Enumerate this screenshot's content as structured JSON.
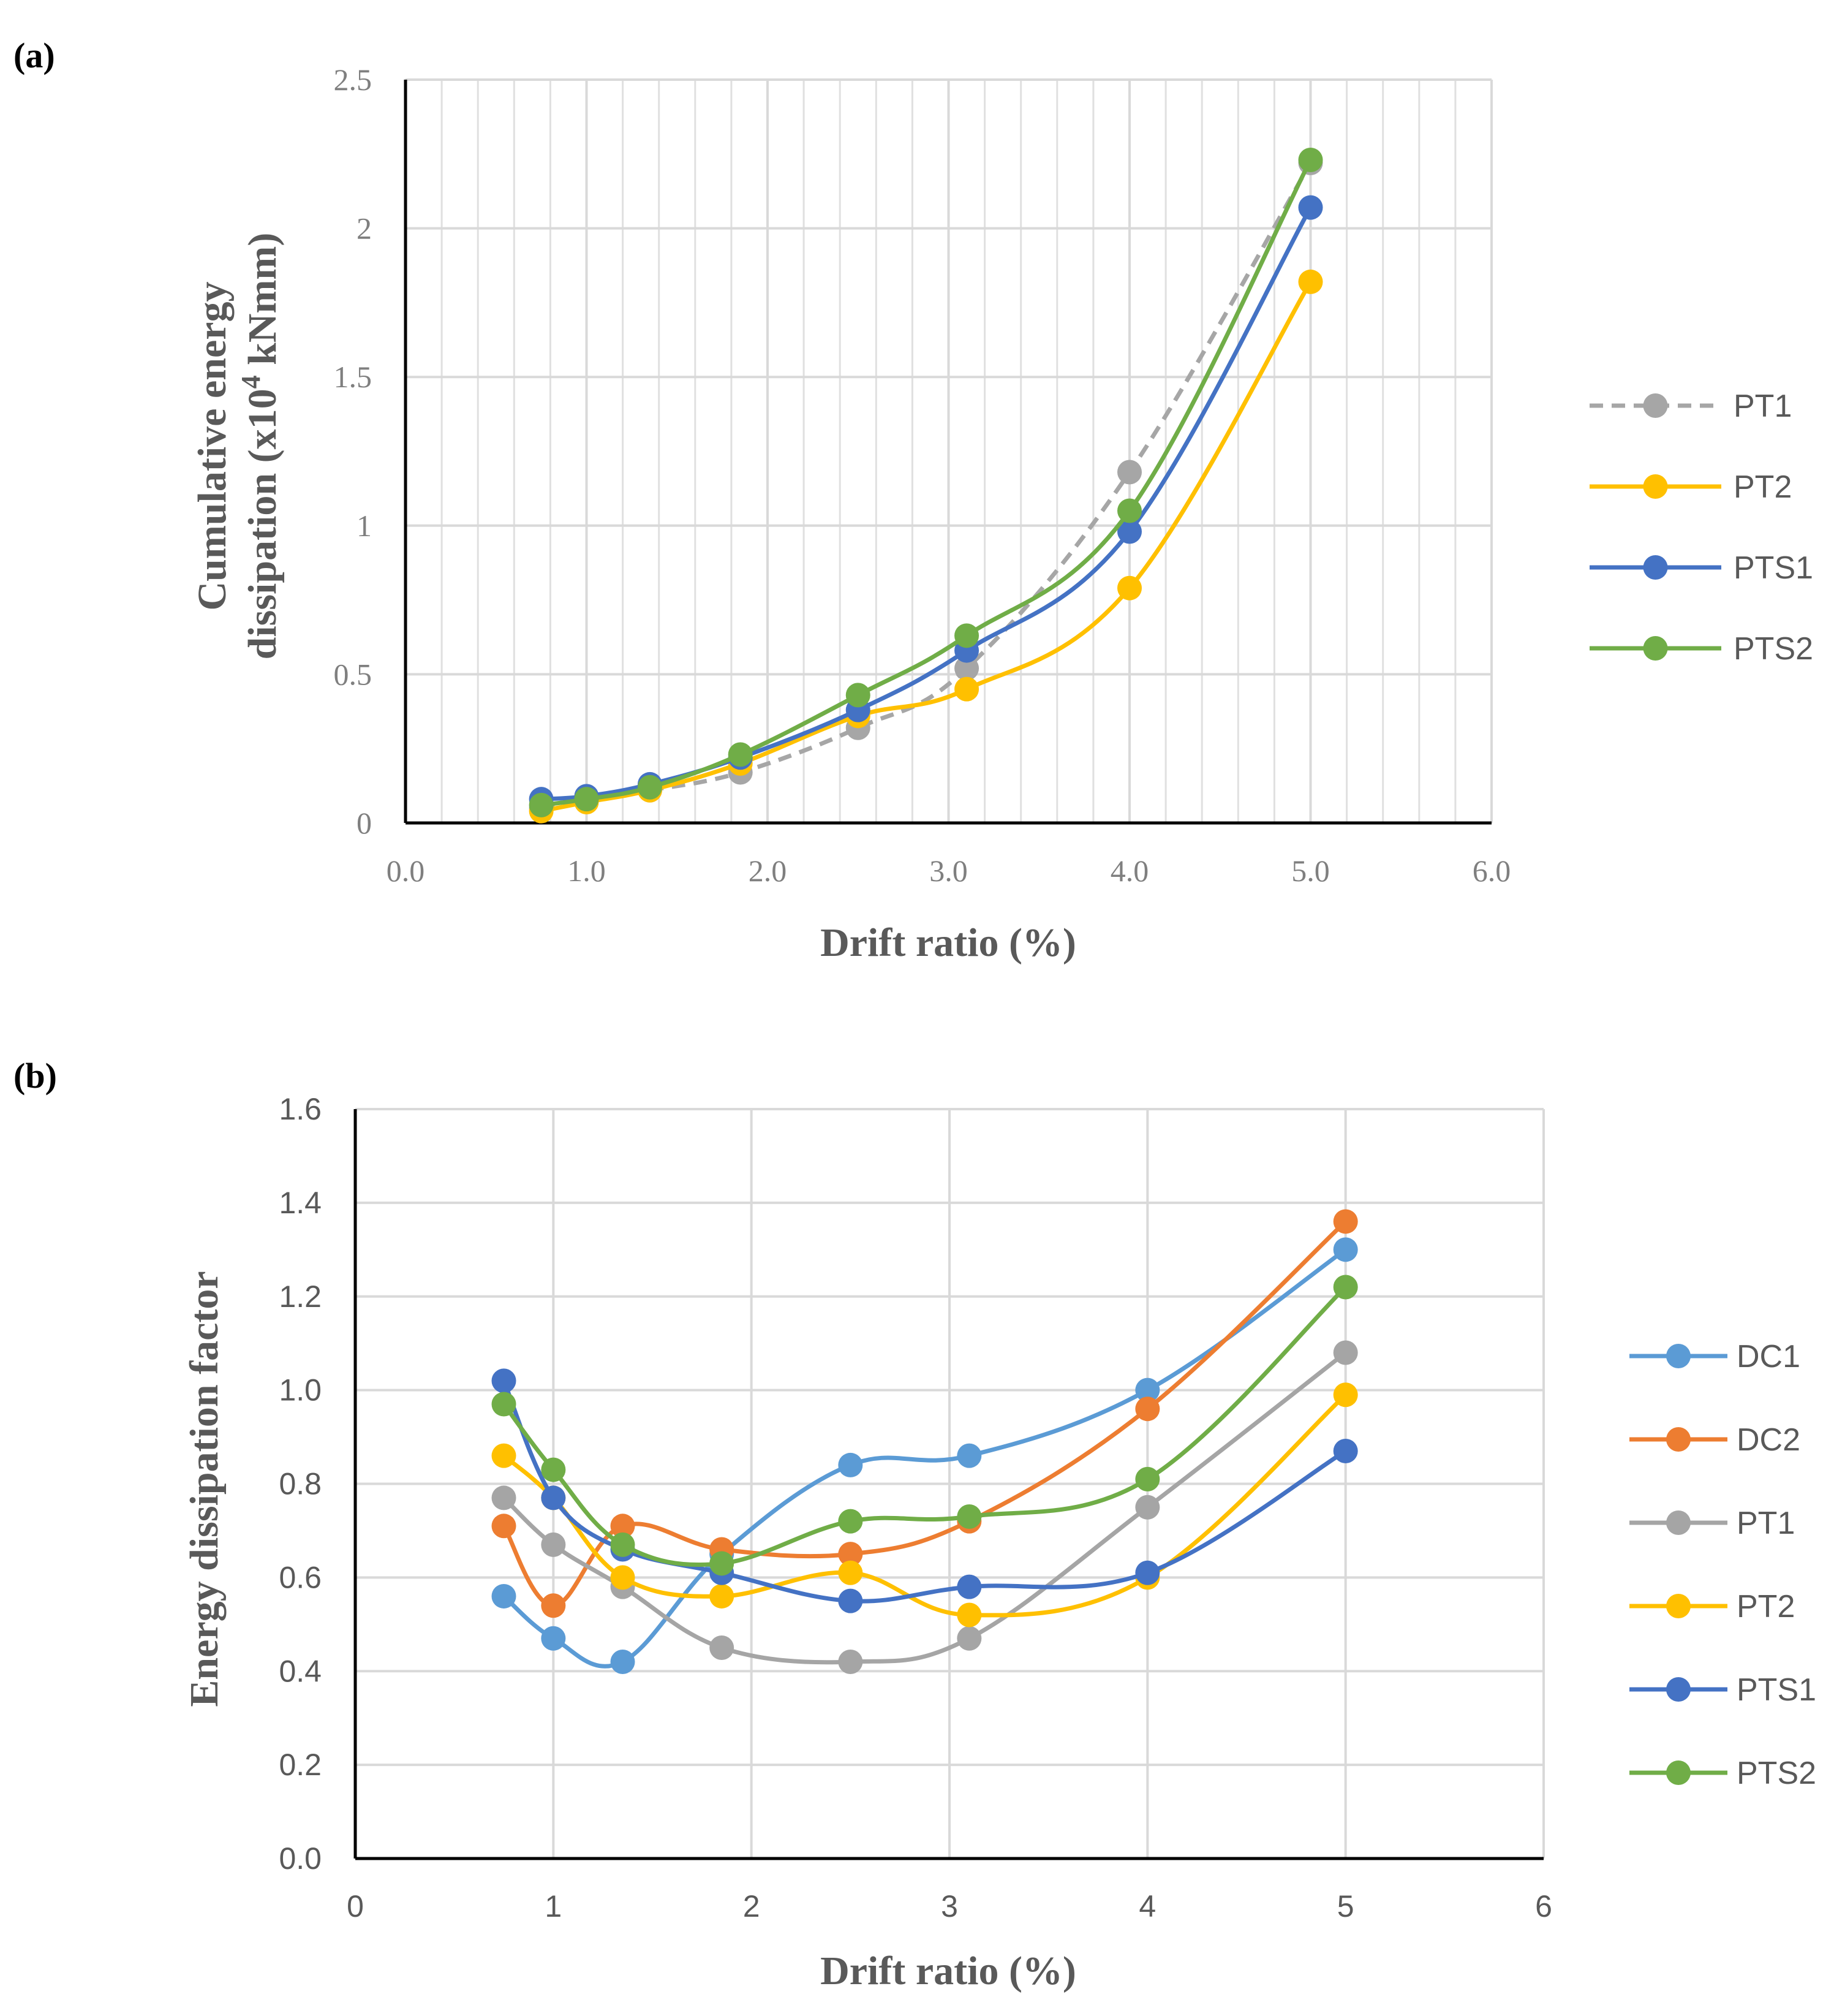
{
  "chart_data": [
    {
      "panel_label": "(a)",
      "type": "line",
      "ylabel_line1": "Cumulative energy",
      "ylabel_line2_parts": [
        "dissipation (x10",
        "4",
        " kNmm)"
      ],
      "xlabel": "Drift ratio (%)",
      "xlim": [
        0,
        6
      ],
      "ylim": [
        0,
        2.5
      ],
      "x_ticks": [
        "0.0",
        "1.0",
        "2.0",
        "3.0",
        "4.0",
        "5.0",
        "6.0"
      ],
      "y_ticks": [
        "0",
        "0.5",
        "1",
        "1.5",
        "2",
        "2.5"
      ],
      "grid": "major and minor",
      "legend_position": "right",
      "x": [
        0.75,
        1.0,
        1.35,
        1.85,
        2.5,
        3.1,
        4.0,
        5.0
      ],
      "series": [
        {
          "name": "PT1",
          "color": "#a6a6a6",
          "dashed": true,
          "values": [
            0.05,
            0.08,
            0.11,
            0.17,
            0.32,
            0.52,
            1.18,
            2.22
          ]
        },
        {
          "name": "PT2",
          "color": "#ffc000",
          "dashed": false,
          "values": [
            0.04,
            0.07,
            0.11,
            0.2,
            0.36,
            0.45,
            0.79,
            1.82
          ]
        },
        {
          "name": "PTS1",
          "color": "#4472c4",
          "dashed": false,
          "values": [
            0.08,
            0.09,
            0.13,
            0.22,
            0.38,
            0.58,
            0.98,
            2.07
          ]
        },
        {
          "name": "PTS2",
          "color": "#70ad47",
          "dashed": false,
          "values": [
            0.06,
            0.08,
            0.12,
            0.23,
            0.43,
            0.63,
            1.05,
            2.23
          ]
        }
      ]
    },
    {
      "panel_label": "(b)",
      "type": "line",
      "ylabel": "Energy dissipation factor",
      "xlabel": "Drift ratio (%)",
      "xlim": [
        0,
        6
      ],
      "ylim": [
        0,
        1.6
      ],
      "x_ticks": [
        "0",
        "1",
        "2",
        "3",
        "4",
        "5",
        "6"
      ],
      "y_ticks": [
        "0.0",
        "0.2",
        "0.4",
        "0.6",
        "0.8",
        "1.0",
        "1.2",
        "1.4",
        "1.6"
      ],
      "grid": "horizontal and vertical major",
      "legend_position": "right",
      "x": [
        0.75,
        1.0,
        1.35,
        1.85,
        2.5,
        3.1,
        4.0,
        5.0
      ],
      "series": [
        {
          "name": "DC1",
          "color": "#5b9bd5",
          "values": [
            0.56,
            0.47,
            0.42,
            0.65,
            0.84,
            0.86,
            1.0,
            1.3
          ]
        },
        {
          "name": "DC2",
          "color": "#ed7d31",
          "values": [
            0.71,
            0.54,
            0.71,
            0.66,
            0.65,
            0.72,
            0.96,
            1.36
          ]
        },
        {
          "name": "PT1",
          "color": "#a5a5a5",
          "values": [
            0.77,
            0.67,
            0.58,
            0.45,
            0.42,
            0.47,
            0.75,
            1.08
          ]
        },
        {
          "name": "PT2",
          "color": "#ffc000",
          "values": [
            0.86,
            0.77,
            0.6,
            0.56,
            0.61,
            0.52,
            0.6,
            0.99
          ]
        },
        {
          "name": "PTS1",
          "color": "#4472c4",
          "values": [
            1.02,
            0.77,
            0.66,
            0.61,
            0.55,
            0.58,
            0.61,
            0.87
          ]
        },
        {
          "name": "PTS2",
          "color": "#70ad47",
          "values": [
            0.97,
            0.83,
            0.67,
            0.63,
            0.72,
            0.73,
            0.81,
            1.22
          ]
        }
      ]
    }
  ]
}
